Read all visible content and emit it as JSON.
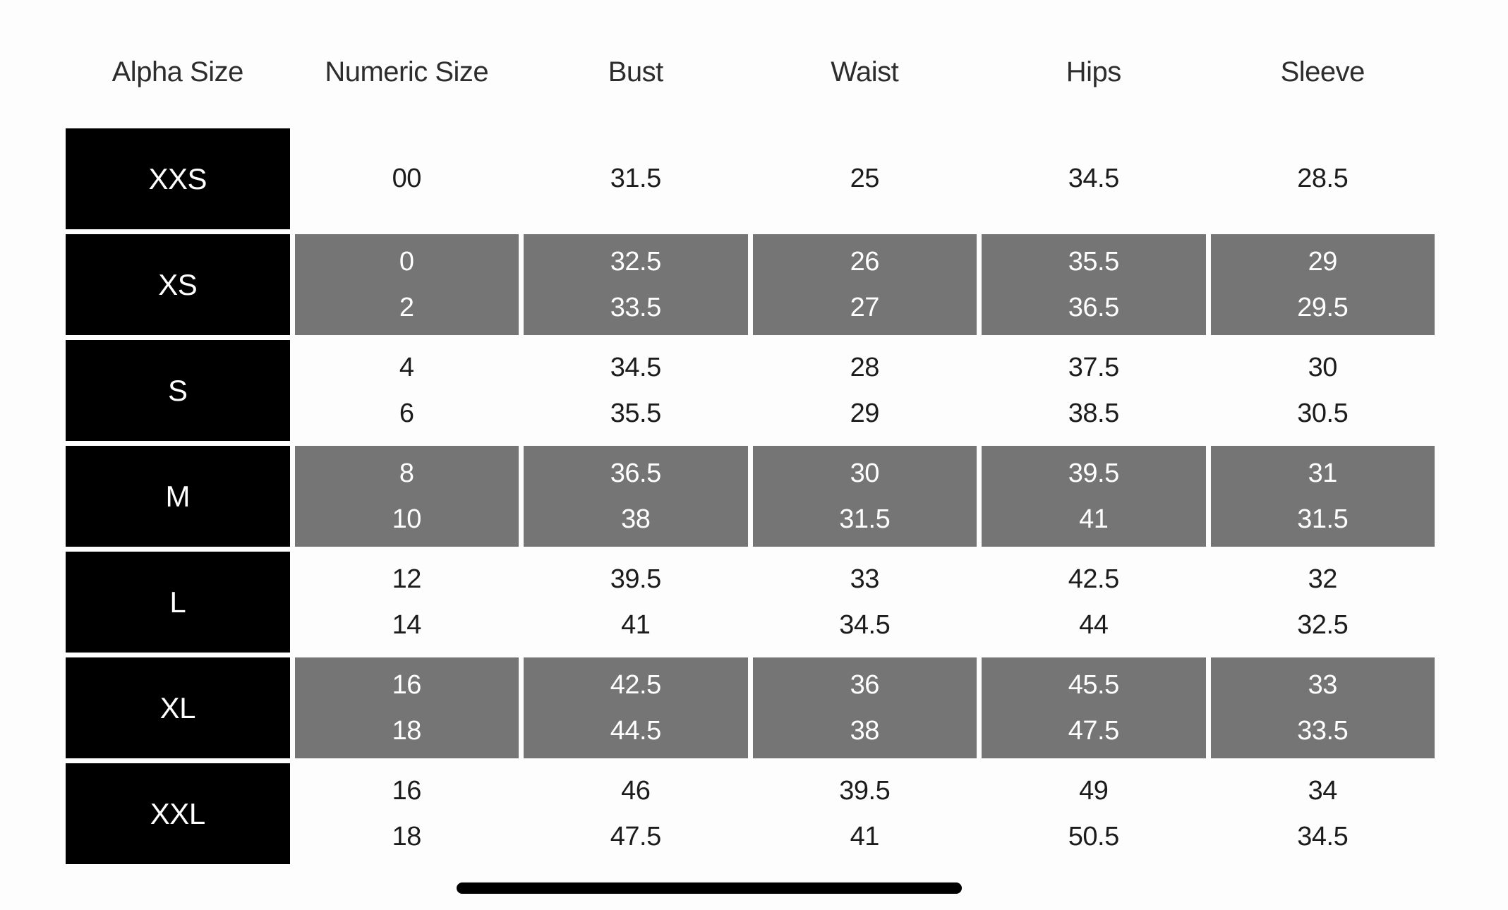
{
  "colors": {
    "background": "#fdfdfd",
    "alpha_cell": "#000000",
    "shaded_cell": "#757575",
    "header_text": "#2d2d2d",
    "data_text": "#1c1c1c",
    "light_text": "#ffffff"
  },
  "chart_data": {
    "type": "table",
    "columns": [
      "Alpha Size",
      "Numeric Size",
      "Bust",
      "Waist",
      "Hips",
      "Sleeve"
    ],
    "rows": [
      {
        "alpha": "XXS",
        "numeric": [
          "00"
        ],
        "bust": [
          "31.5"
        ],
        "waist": [
          "25"
        ],
        "hips": [
          "34.5"
        ],
        "sleeve": [
          "28.5"
        ]
      },
      {
        "alpha": "XS",
        "numeric": [
          "0",
          "2"
        ],
        "bust": [
          "32.5",
          "33.5"
        ],
        "waist": [
          "26",
          "27"
        ],
        "hips": [
          "35.5",
          "36.5"
        ],
        "sleeve": [
          "29",
          "29.5"
        ]
      },
      {
        "alpha": "S",
        "numeric": [
          "4",
          "6"
        ],
        "bust": [
          "34.5",
          "35.5"
        ],
        "waist": [
          "28",
          "29"
        ],
        "hips": [
          "37.5",
          "38.5"
        ],
        "sleeve": [
          "30",
          "30.5"
        ]
      },
      {
        "alpha": "M",
        "numeric": [
          "8",
          "10"
        ],
        "bust": [
          "36.5",
          "38"
        ],
        "waist": [
          "30",
          "31.5"
        ],
        "hips": [
          "39.5",
          "41"
        ],
        "sleeve": [
          "31",
          "31.5"
        ]
      },
      {
        "alpha": "L",
        "numeric": [
          "12",
          "14"
        ],
        "bust": [
          "39.5",
          "41"
        ],
        "waist": [
          "33",
          "34.5"
        ],
        "hips": [
          "42.5",
          "44"
        ],
        "sleeve": [
          "32",
          "32.5"
        ]
      },
      {
        "alpha": "XL",
        "numeric": [
          "16",
          "18"
        ],
        "bust": [
          "42.5",
          "44.5"
        ],
        "waist": [
          "36",
          "38"
        ],
        "hips": [
          "45.5",
          "47.5"
        ],
        "sleeve": [
          "33",
          "33.5"
        ]
      },
      {
        "alpha": "XXL",
        "numeric": [
          "16",
          "18"
        ],
        "bust": [
          "46",
          "47.5"
        ],
        "waist": [
          "39.5",
          "41"
        ],
        "hips": [
          "49",
          "50.5"
        ],
        "sleeve": [
          "34",
          "34.5"
        ]
      }
    ],
    "layout_hints": {
      "shaded_row_pattern": "every second row (XS, M, XL)",
      "alpha_column_style": "black cells, white text",
      "grid": "white gaps between cells"
    }
  }
}
